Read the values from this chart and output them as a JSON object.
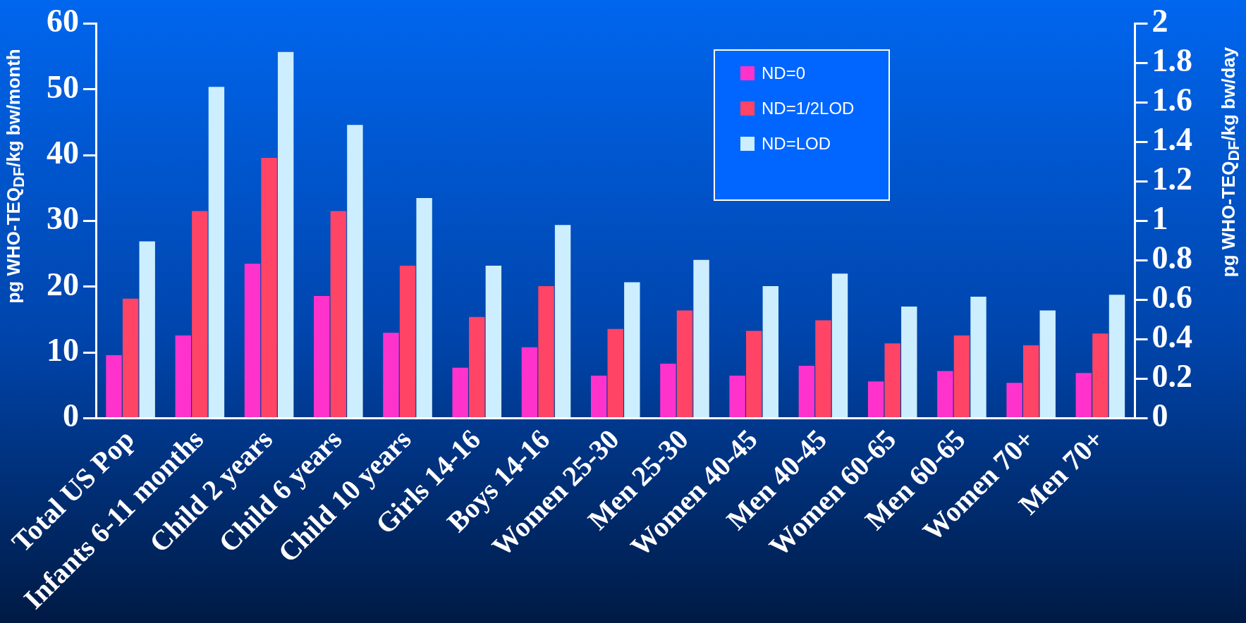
{
  "chart_data": {
    "type": "bar",
    "ylabel": "pg WHO-TEQ$_{DF}$/kg bw/month",
    "y2label": "pg WHO-TEQ$_{DF}$/kg bw/day",
    "categories": [
      "Total US Pop",
      "Infants 6-11 months",
      "Child 2 years",
      "Child 6 years",
      "Child 10 years",
      "Girls 14-16",
      "Boys 14-16",
      "Women 25-30",
      "Men 25-30",
      "Women 40-45",
      "Men 40-45",
      "Women 60-65",
      "Men 60-65",
      "Women 70+",
      "Men 70+"
    ],
    "series": [
      {
        "name": "ND=0",
        "color": "#ff33cc",
        "values": [
          9.6,
          12.6,
          23.5,
          18.6,
          13.0,
          7.7,
          10.8,
          6.5,
          8.3,
          6.5,
          8.0,
          5.6,
          7.2,
          5.4,
          6.9
        ]
      },
      {
        "name": "ND=1/2LOD",
        "color": "#ff4466",
        "values": [
          18.2,
          31.5,
          39.6,
          31.5,
          23.2,
          15.4,
          20.1,
          13.6,
          16.4,
          13.3,
          14.9,
          11.4,
          12.6,
          11.1,
          12.9
        ]
      },
      {
        "name": "ND=LOD",
        "color": "#cceeff",
        "values": [
          26.9,
          50.4,
          55.7,
          44.6,
          33.5,
          23.2,
          29.4,
          20.7,
          24.1,
          20.1,
          22.0,
          17.0,
          18.5,
          16.4,
          18.8
        ]
      }
    ],
    "ylim": [
      0,
      60
    ],
    "yticks": [
      0,
      10,
      20,
      30,
      40,
      50,
      60
    ],
    "y2lim": [
      0,
      2
    ],
    "y2ticks": [
      0,
      0.2,
      0.4,
      0.6,
      0.8,
      1,
      1.2,
      1.4,
      1.6,
      1.8,
      2
    ],
    "grid": false,
    "legend": "top right"
  }
}
